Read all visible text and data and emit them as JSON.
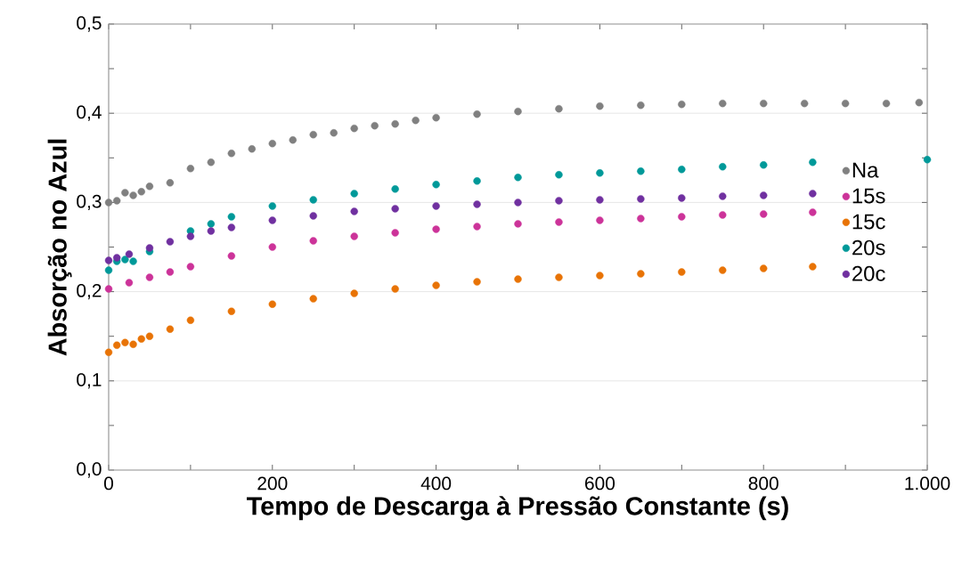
{
  "chart_data": {
    "type": "scatter",
    "xlabel": "Tempo de Descarga à Pressão Constante (s)",
    "ylabel": "Absorção no Azul",
    "xlim": [
      0,
      1000
    ],
    "ylim": [
      0,
      0.5
    ],
    "xticks": [
      0,
      {
        "value": 100,
        "label": null
      },
      200,
      {
        "value": 300,
        "label": null
      },
      400,
      {
        "value": 500,
        "label": null
      },
      600,
      {
        "value": 700,
        "label": null
      },
      800,
      {
        "value": 900,
        "label": null
      },
      {
        "value": 1000,
        "label": "1.000"
      }
    ],
    "yticks": [
      {
        "value": 0,
        "label": "0,0"
      },
      {
        "value": 0.05,
        "label": null
      },
      {
        "value": 0.1,
        "label": "0,1"
      },
      {
        "value": 0.15,
        "label": null
      },
      {
        "value": 0.2,
        "label": "0,2"
      },
      {
        "value": 0.25,
        "label": null
      },
      {
        "value": 0.3,
        "label": "0,3"
      },
      {
        "value": 0.35,
        "label": null
      },
      {
        "value": 0.4,
        "label": "0,4"
      },
      {
        "value": 0.45,
        "label": null
      },
      {
        "value": 0.5,
        "label": "0,5"
      }
    ],
    "grid": "y",
    "legend": "right",
    "marker": "circle",
    "series": [
      {
        "name": "Na",
        "color": "#808080",
        "x": [
          0,
          10,
          20,
          30,
          40,
          50,
          75,
          100,
          125,
          150,
          175,
          200,
          225,
          250,
          275,
          300,
          325,
          350,
          375,
          400,
          450,
          500,
          550,
          600,
          650,
          700,
          750,
          800,
          850,
          900,
          950,
          990
        ],
        "values": [
          0.3,
          0.302,
          0.311,
          0.308,
          0.312,
          0.318,
          0.322,
          0.338,
          0.345,
          0.355,
          0.36,
          0.366,
          0.37,
          0.376,
          0.378,
          0.383,
          0.386,
          0.388,
          0.392,
          0.395,
          0.399,
          0.402,
          0.405,
          0.408,
          0.409,
          0.41,
          0.411,
          0.411,
          0.411,
          0.411,
          0.411,
          0.412
        ]
      },
      {
        "name": "15s",
        "color": "#cc3399",
        "x": [
          0,
          25,
          50,
          75,
          100,
          150,
          200,
          250,
          300,
          350,
          400,
          450,
          500,
          550,
          600,
          650,
          700,
          750,
          800,
          860
        ],
        "values": [
          0.203,
          0.21,
          0.216,
          0.222,
          0.228,
          0.24,
          0.25,
          0.257,
          0.262,
          0.266,
          0.27,
          0.273,
          0.276,
          0.278,
          0.28,
          0.282,
          0.284,
          0.286,
          0.287,
          0.289
        ]
      },
      {
        "name": "15c",
        "color": "#e87306",
        "x": [
          0,
          10,
          20,
          30,
          40,
          50,
          75,
          100,
          150,
          200,
          250,
          300,
          350,
          400,
          450,
          500,
          550,
          600,
          650,
          700,
          750,
          800,
          860
        ],
        "values": [
          0.132,
          0.14,
          0.143,
          0.141,
          0.147,
          0.15,
          0.158,
          0.168,
          0.178,
          0.186,
          0.192,
          0.198,
          0.203,
          0.207,
          0.211,
          0.214,
          0.216,
          0.218,
          0.22,
          0.222,
          0.224,
          0.226,
          0.228
        ]
      },
      {
        "name": "20s",
        "color": "#009999",
        "x": [
          0,
          10,
          20,
          30,
          50,
          100,
          125,
          150,
          200,
          250,
          300,
          350,
          400,
          450,
          500,
          550,
          600,
          650,
          700,
          750,
          800,
          860,
          1000
        ],
        "values": [
          0.224,
          0.234,
          0.236,
          0.234,
          0.245,
          0.268,
          0.276,
          0.284,
          0.296,
          0.303,
          0.31,
          0.315,
          0.32,
          0.324,
          0.328,
          0.331,
          0.333,
          0.335,
          0.337,
          0.34,
          0.342,
          0.345,
          0.348
        ]
      },
      {
        "name": "20c",
        "color": "#7030a0",
        "x": [
          0,
          10,
          25,
          50,
          75,
          100,
          125,
          150,
          200,
          250,
          300,
          350,
          400,
          450,
          500,
          550,
          600,
          650,
          700,
          750,
          800,
          860
        ],
        "values": [
          0.235,
          0.238,
          0.242,
          0.249,
          0.256,
          0.262,
          0.268,
          0.272,
          0.28,
          0.285,
          0.29,
          0.293,
          0.296,
          0.298,
          0.3,
          0.302,
          0.303,
          0.304,
          0.305,
          0.307,
          0.308,
          0.31
        ]
      }
    ]
  }
}
